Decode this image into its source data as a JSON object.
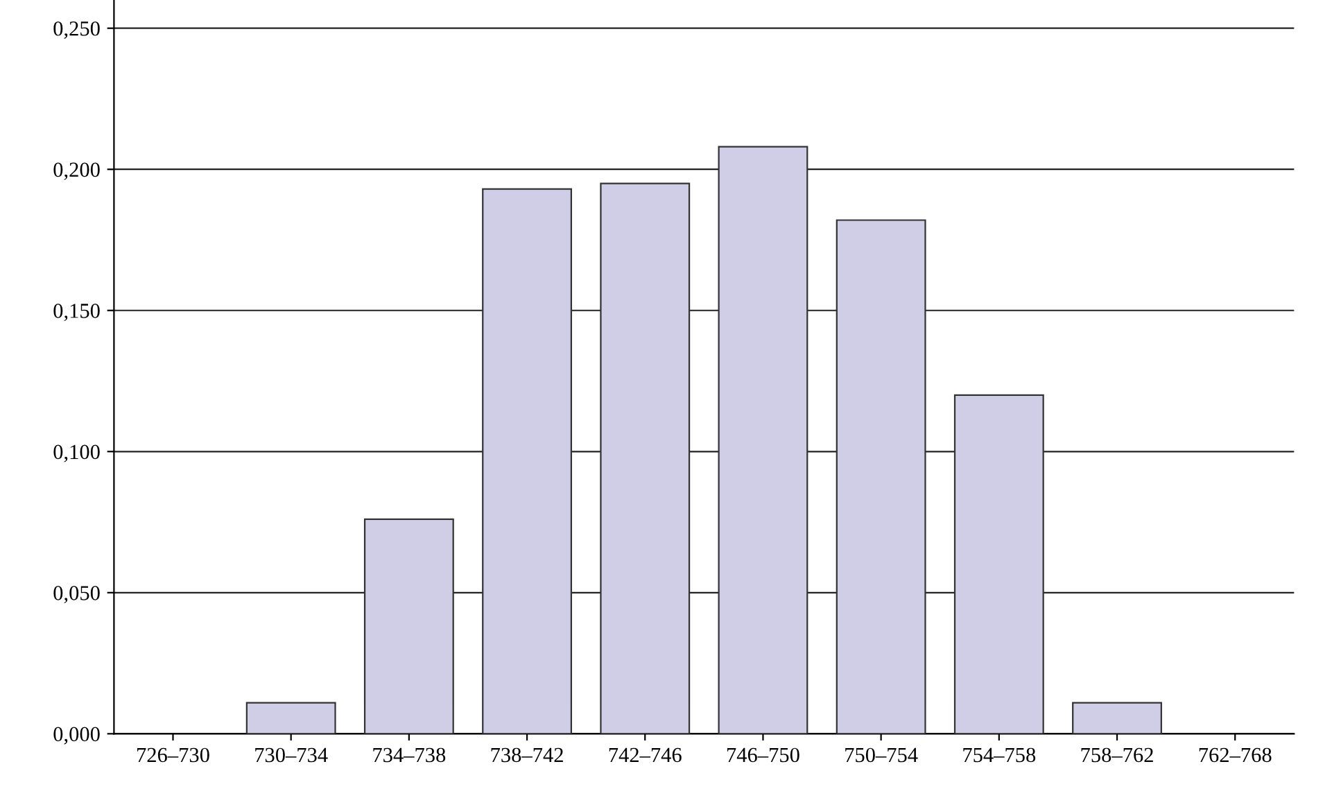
{
  "chart_data": {
    "type": "bar",
    "categories": [
      "726–730",
      "730–734",
      "734–738",
      "738–742",
      "742–746",
      "746–750",
      "750–754",
      "754–758",
      "758–762",
      "762–768"
    ],
    "values": [
      0,
      0.011,
      0.076,
      0.193,
      0.195,
      0.208,
      0.182,
      0.12,
      0.011,
      0
    ],
    "color": "#d0cde6",
    "ylim": [
      0,
      0.26
    ],
    "yticks": [
      {
        "value": 0,
        "label": "0,000"
      },
      {
        "value": 0.05,
        "label": "0,050"
      },
      {
        "value": 0.1,
        "label": "0,100"
      },
      {
        "value": 0.15,
        "label": "0,150"
      },
      {
        "value": 0.2,
        "label": "0,200"
      },
      {
        "value": 0.25,
        "label": "0,250"
      }
    ],
    "grid": "y"
  }
}
